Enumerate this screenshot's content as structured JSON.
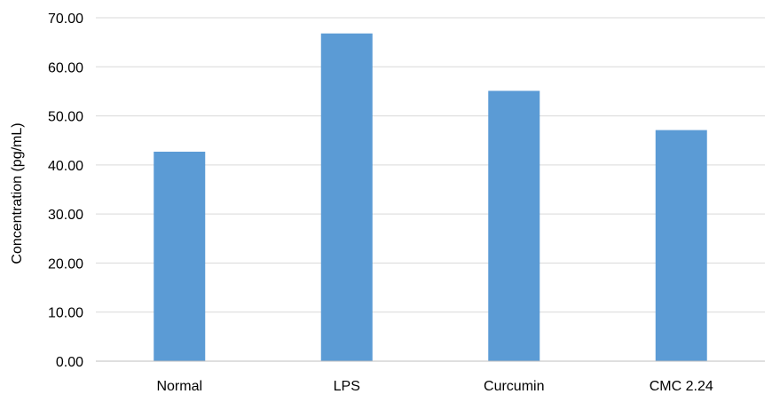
{
  "chart_data": {
    "type": "bar",
    "title": "",
    "xlabel": "",
    "ylabel": "Concentration (pg/mL)",
    "categories": [
      "Normal",
      "LPS",
      "Curcumin",
      "CMC 2.24"
    ],
    "values": [
      42.7,
      66.8,
      55.1,
      47.1
    ],
    "ylim": [
      0,
      70
    ],
    "yticks": [
      "0.00",
      "10.00",
      "20.00",
      "30.00",
      "40.00",
      "50.00",
      "60.00",
      "70.00"
    ],
    "ytick_values": [
      0,
      10,
      20,
      30,
      40,
      50,
      60,
      70
    ],
    "grid": true,
    "legend": "none",
    "bar_color": "#5B9BD5",
    "grid_color": "#D9D9D9",
    "axis_color": "#BFBFBF"
  }
}
